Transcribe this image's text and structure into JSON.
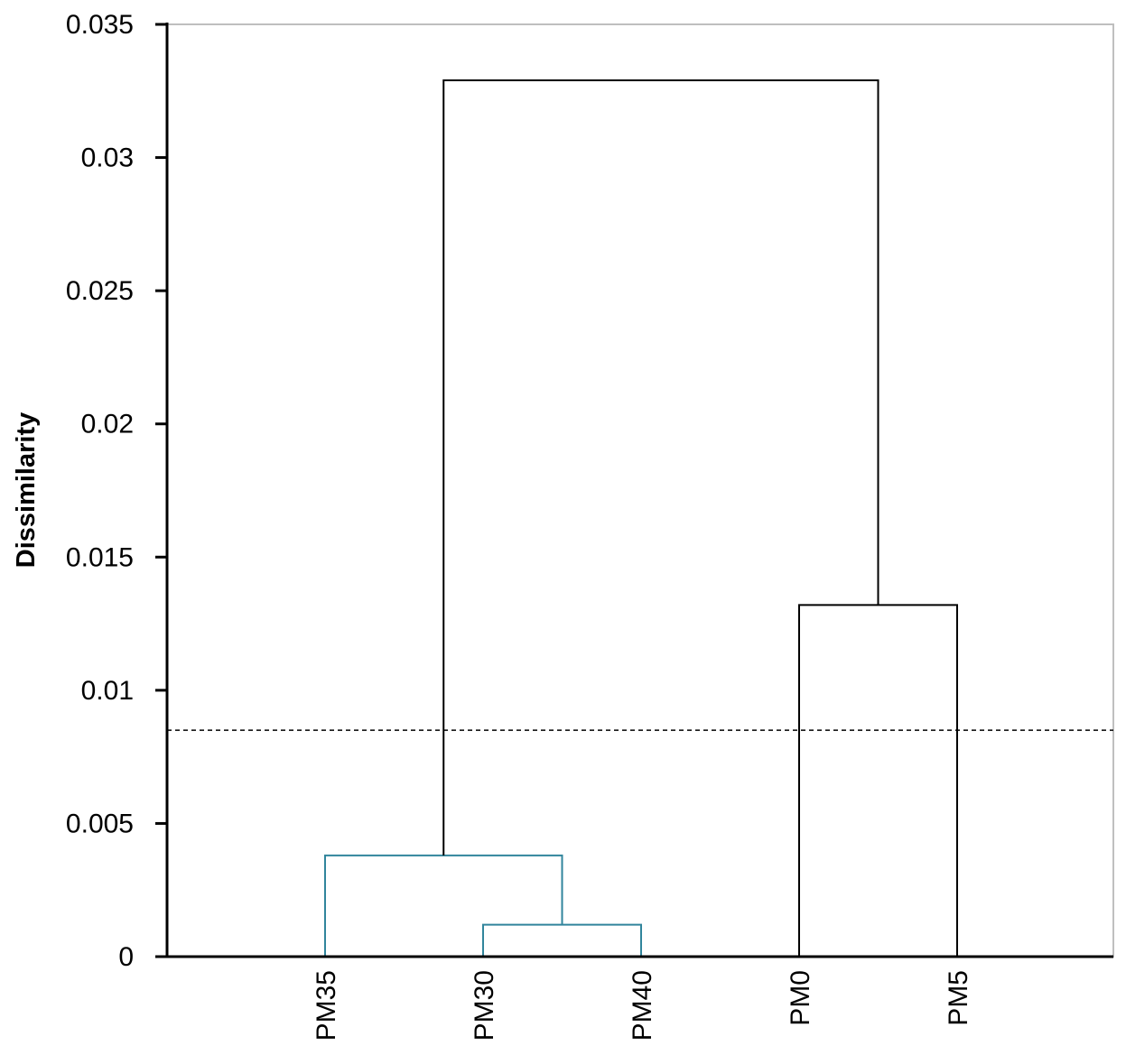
{
  "chart_data": {
    "type": "dendrogram",
    "title": "",
    "xlabel": "",
    "ylabel": "Dissimilarity",
    "ylim": [
      0,
      0.035
    ],
    "yticks": [
      "0",
      "0.005",
      "0.01",
      "0.015",
      "0.02",
      "0.025",
      "0.03",
      "0.035"
    ],
    "leaves": [
      "PM35",
      "PM30",
      "PM40",
      "PM0",
      "PM5"
    ],
    "merges": [
      {
        "left": "PM30",
        "right": "PM40",
        "height": 0.0012,
        "color": "#31859c"
      },
      {
        "left": "PM35",
        "right": "PM30+PM40",
        "height": 0.0038,
        "color": "#31859c"
      },
      {
        "left": "PM0",
        "right": "PM5",
        "height": 0.0132,
        "color": "#000000"
      },
      {
        "left": "PM35+PM30+PM40",
        "right": "PM0+PM5",
        "height": 0.0329,
        "color": "#000000"
      }
    ],
    "cutoff": 0.0085,
    "grid": false
  }
}
